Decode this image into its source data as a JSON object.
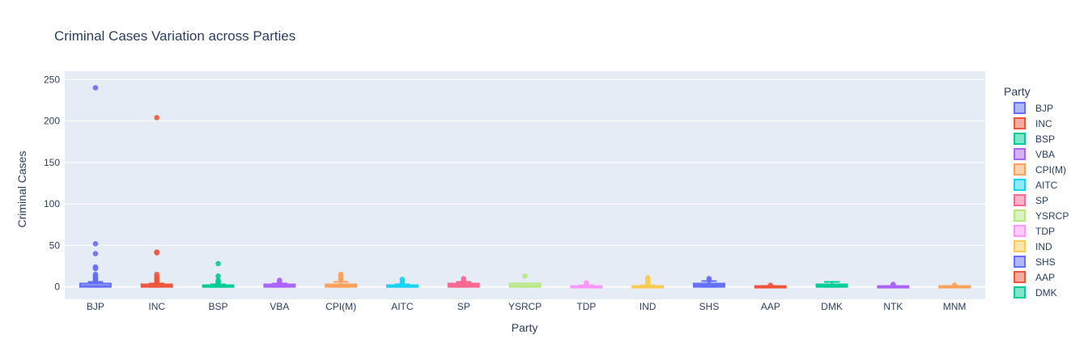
{
  "chart_data": {
    "type": "box",
    "title": "Criminal Cases Variation across Parties",
    "xlabel": "Party",
    "ylabel": "Criminal Cases",
    "ylim": [
      -15,
      260
    ],
    "yticks": [
      0,
      50,
      100,
      150,
      200,
      250
    ],
    "grid": true,
    "legend": {
      "title": "Party",
      "placement": "right"
    },
    "legend_entries": [
      "BJP",
      "INC",
      "BSP",
      "VBA",
      "CPI(M)",
      "AITC",
      "SP",
      "YSRCP",
      "TDP",
      "IND",
      "SHS",
      "AAP",
      "DMK"
    ],
    "categories": [
      "BJP",
      "INC",
      "BSP",
      "VBA",
      "CPI(M)",
      "AITC",
      "SP",
      "YSRCP",
      "TDP",
      "IND",
      "SHS",
      "AAP",
      "DMK",
      "NTK",
      "MNM"
    ],
    "series": [
      {
        "name": "BJP",
        "color": "#636efa",
        "q1": 0,
        "median": 1,
        "q3": 4,
        "whisker_low": 0,
        "whisker_high": 6,
        "outliers": [
          240,
          52,
          40,
          24,
          22,
          15,
          13,
          11,
          9,
          8
        ]
      },
      {
        "name": "INC",
        "color": "#ef553b",
        "q1": 0,
        "median": 1,
        "q3": 3,
        "whisker_low": 0,
        "whisker_high": 4,
        "outliers": [
          204,
          42,
          41,
          15,
          12,
          10,
          8,
          7,
          6
        ]
      },
      {
        "name": "BSP",
        "color": "#00cc96",
        "q1": 0,
        "median": 0,
        "q3": 2,
        "whisker_low": 0,
        "whisker_high": 3,
        "outliers": [
          28,
          13,
          8,
          6,
          5,
          4
        ]
      },
      {
        "name": "VBA",
        "color": "#ab63fa",
        "q1": 0,
        "median": 1,
        "q3": 3,
        "whisker_low": 0,
        "whisker_high": 4,
        "outliers": [
          8,
          6,
          5
        ]
      },
      {
        "name": "CPI(M)",
        "color": "#ffa15a",
        "q1": 0,
        "median": 1,
        "q3": 3,
        "whisker_low": 0,
        "whisker_high": 6,
        "outliers": [
          15,
          13,
          11,
          9,
          8
        ]
      },
      {
        "name": "AITC",
        "color": "#19d3f3",
        "q1": 0,
        "median": 0,
        "q3": 2,
        "whisker_low": 0,
        "whisker_high": 3,
        "outliers": [
          9,
          6,
          4
        ]
      },
      {
        "name": "SP",
        "color": "#ff6692",
        "q1": 0,
        "median": 2,
        "q3": 4,
        "whisker_low": 0,
        "whisker_high": 6,
        "outliers": [
          10,
          8,
          7
        ]
      },
      {
        "name": "YSRCP",
        "color": "#b6e880",
        "q1": 0,
        "median": 1,
        "q3": 4,
        "whisker_low": 0,
        "whisker_high": 4,
        "outliers": [
          13
        ]
      },
      {
        "name": "TDP",
        "color": "#ff97ff",
        "q1": 0,
        "median": 0,
        "q3": 1,
        "whisker_low": 0,
        "whisker_high": 2,
        "outliers": [
          5,
          3
        ]
      },
      {
        "name": "IND",
        "color": "#fecb52",
        "q1": 0,
        "median": 0,
        "q3": 1,
        "whisker_low": 0,
        "whisker_high": 2,
        "outliers": [
          11,
          9,
          7,
          5,
          3
        ]
      },
      {
        "name": "SHS",
        "color": "#636efa",
        "q1": 0,
        "median": 2,
        "q3": 4,
        "whisker_low": 0,
        "whisker_high": 7,
        "outliers": [
          10,
          8
        ]
      },
      {
        "name": "AAP",
        "color": "#ef553b",
        "q1": 0,
        "median": 0,
        "q3": 1,
        "whisker_low": 0,
        "whisker_high": 1,
        "outliers": [
          2
        ]
      },
      {
        "name": "DMK",
        "color": "#00cc96",
        "q1": 0,
        "median": 1,
        "q3": 3,
        "whisker_low": 0,
        "whisker_high": 6,
        "outliers": []
      },
      {
        "name": "NTK",
        "color": "#ab63fa",
        "q1": 0,
        "median": 0,
        "q3": 1,
        "whisker_low": 0,
        "whisker_high": 1,
        "outliers": [
          3,
          2
        ]
      },
      {
        "name": "MNM",
        "color": "#ffa15a",
        "q1": 0,
        "median": 0,
        "q3": 1,
        "whisker_low": 0,
        "whisker_high": 1,
        "outliers": [
          2
        ]
      }
    ]
  }
}
